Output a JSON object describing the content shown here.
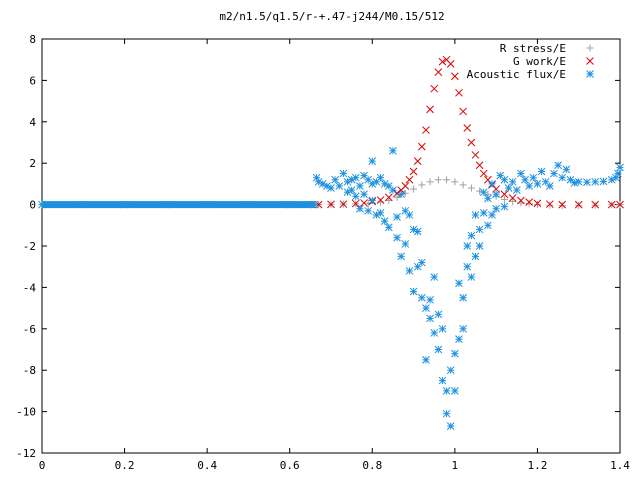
{
  "chart_data": {
    "type": "scatter",
    "title": "m2/n1.5/q1.5/r-+.47-j244/M0.15/512",
    "xlabel": "",
    "ylabel": "",
    "xlim": [
      0,
      1.4
    ],
    "ylim": [
      -12,
      8
    ],
    "xticks": [
      "0",
      "0.2",
      "0.4",
      "0.6",
      "0.8",
      "1",
      "1.2",
      "1.4"
    ],
    "xtick_values": [
      0,
      0.2,
      0.4,
      0.6,
      0.8,
      1.0,
      1.2,
      1.4
    ],
    "yticks": [
      "8",
      "6",
      "4",
      "2",
      "0",
      "-2",
      "-4",
      "-6",
      "-8",
      "-10",
      "-12"
    ],
    "ytick_values": [
      8,
      6,
      4,
      2,
      0,
      -2,
      -4,
      -6,
      -8,
      -10,
      -12
    ],
    "grid": false,
    "legend_position": "top-right",
    "series": [
      {
        "name": "R stress/E",
        "marker": "plus",
        "color": "#a0a0a0",
        "points": [
          [
            0.67,
            0.0
          ],
          [
            0.7,
            0.01
          ],
          [
            0.73,
            0.02
          ],
          [
            0.76,
            0.04
          ],
          [
            0.79,
            0.06
          ],
          [
            0.82,
            0.12
          ],
          [
            0.84,
            0.2
          ],
          [
            0.86,
            0.35
          ],
          [
            0.88,
            0.55
          ],
          [
            0.9,
            0.75
          ],
          [
            0.92,
            0.95
          ],
          [
            0.94,
            1.1
          ],
          [
            0.96,
            1.2
          ],
          [
            0.98,
            1.2
          ],
          [
            1.0,
            1.1
          ],
          [
            1.02,
            0.95
          ],
          [
            1.04,
            0.8
          ],
          [
            1.06,
            0.65
          ],
          [
            1.08,
            0.5
          ],
          [
            1.1,
            0.4
          ],
          [
            1.12,
            0.25
          ],
          [
            1.14,
            0.15
          ],
          [
            1.16,
            0.08
          ],
          [
            1.18,
            0.04
          ],
          [
            1.2,
            0.0
          ],
          [
            1.23,
            -0.03
          ],
          [
            1.26,
            -0.05
          ],
          [
            1.3,
            -0.05
          ],
          [
            1.34,
            -0.03
          ],
          [
            1.38,
            -0.01
          ],
          [
            1.4,
            0.0
          ]
        ]
      },
      {
        "name": "G work/E",
        "marker": "cross",
        "color": "#e00000",
        "points": [
          [
            0.67,
            0.0
          ],
          [
            0.7,
            0.01
          ],
          [
            0.73,
            0.02
          ],
          [
            0.76,
            0.05
          ],
          [
            0.78,
            0.08
          ],
          [
            0.8,
            0.15
          ],
          [
            0.82,
            0.22
          ],
          [
            0.84,
            0.35
          ],
          [
            0.86,
            0.55
          ],
          [
            0.87,
            0.7
          ],
          [
            0.88,
            0.9
          ],
          [
            0.89,
            1.2
          ],
          [
            0.9,
            1.6
          ],
          [
            0.91,
            2.1
          ],
          [
            0.92,
            2.8
          ],
          [
            0.93,
            3.6
          ],
          [
            0.94,
            4.6
          ],
          [
            0.95,
            5.6
          ],
          [
            0.96,
            6.4
          ],
          [
            0.97,
            6.9
          ],
          [
            0.98,
            7.0
          ],
          [
            0.99,
            6.8
          ],
          [
            1.0,
            6.2
          ],
          [
            1.01,
            5.4
          ],
          [
            1.02,
            4.5
          ],
          [
            1.03,
            3.7
          ],
          [
            1.04,
            3.0
          ],
          [
            1.05,
            2.4
          ],
          [
            1.06,
            1.9
          ],
          [
            1.07,
            1.5
          ],
          [
            1.08,
            1.2
          ],
          [
            1.09,
            0.95
          ],
          [
            1.1,
            0.75
          ],
          [
            1.12,
            0.5
          ],
          [
            1.14,
            0.32
          ],
          [
            1.16,
            0.2
          ],
          [
            1.18,
            0.12
          ],
          [
            1.2,
            0.06
          ],
          [
            1.23,
            0.02
          ],
          [
            1.26,
            0.0
          ],
          [
            1.3,
            0.0
          ],
          [
            1.34,
            0.0
          ],
          [
            1.38,
            0.0
          ],
          [
            1.4,
            0.0
          ]
        ]
      },
      {
        "name": "Acoustic flux/E",
        "marker": "star",
        "color": "#1e90e0",
        "points": [
          [
            0.0,
            0.0
          ],
          [
            0.1,
            0.0
          ],
          [
            0.2,
            0.0
          ],
          [
            0.3,
            0.0
          ],
          [
            0.4,
            0.0
          ],
          [
            0.5,
            0.0
          ],
          [
            0.6,
            0.0
          ],
          [
            0.66,
            0.0
          ],
          [
            0.665,
            1.3
          ],
          [
            0.67,
            1.1
          ],
          [
            0.68,
            1.0
          ],
          [
            0.69,
            0.9
          ],
          [
            0.7,
            0.8
          ],
          [
            0.71,
            1.2
          ],
          [
            0.72,
            0.9
          ],
          [
            0.73,
            1.5
          ],
          [
            0.74,
            1.1
          ],
          [
            0.74,
            0.6
          ],
          [
            0.75,
            1.2
          ],
          [
            0.75,
            0.7
          ],
          [
            0.76,
            1.3
          ],
          [
            0.76,
            0.4
          ],
          [
            0.77,
            0.9
          ],
          [
            0.77,
            -0.2
          ],
          [
            0.78,
            1.4
          ],
          [
            0.78,
            0.5
          ],
          [
            0.79,
            1.2
          ],
          [
            0.79,
            -0.3
          ],
          [
            0.8,
            1.0
          ],
          [
            0.8,
            2.1
          ],
          [
            0.8,
            0.2
          ],
          [
            0.81,
            1.1
          ],
          [
            0.81,
            -0.5
          ],
          [
            0.82,
            1.3
          ],
          [
            0.82,
            -0.4
          ],
          [
            0.83,
            1.0
          ],
          [
            0.83,
            -0.8
          ],
          [
            0.84,
            0.9
          ],
          [
            0.84,
            -1.1
          ],
          [
            0.85,
            2.6
          ],
          [
            0.85,
            0.7
          ],
          [
            0.86,
            -0.6
          ],
          [
            0.86,
            -1.6
          ],
          [
            0.87,
            0.5
          ],
          [
            0.87,
            -2.5
          ],
          [
            0.88,
            -0.3
          ],
          [
            0.88,
            -1.9
          ],
          [
            0.89,
            -3.2
          ],
          [
            0.89,
            -0.5
          ],
          [
            0.9,
            -1.2
          ],
          [
            0.9,
            -4.2
          ],
          [
            0.91,
            -1.3
          ],
          [
            0.91,
            -3.0
          ],
          [
            0.92,
            -2.8
          ],
          [
            0.92,
            -4.5
          ],
          [
            0.93,
            -5.0
          ],
          [
            0.93,
            -7.5
          ],
          [
            0.94,
            -4.6
          ],
          [
            0.94,
            -5.5
          ],
          [
            0.95,
            -6.2
          ],
          [
            0.95,
            -3.5
          ],
          [
            0.96,
            -5.3
          ],
          [
            0.96,
            -7.0
          ],
          [
            0.97,
            -6.0
          ],
          [
            0.97,
            -8.5
          ],
          [
            0.98,
            -9.0
          ],
          [
            0.98,
            -10.1
          ],
          [
            0.99,
            -10.7
          ],
          [
            0.99,
            -8.0
          ],
          [
            1.0,
            -9.0
          ],
          [
            1.0,
            -7.2
          ],
          [
            1.01,
            -6.5
          ],
          [
            1.01,
            -3.8
          ],
          [
            1.02,
            -4.5
          ],
          [
            1.02,
            -6.0
          ],
          [
            1.03,
            -3.0
          ],
          [
            1.03,
            -2.0
          ],
          [
            1.04,
            -3.5
          ],
          [
            1.04,
            -1.5
          ],
          [
            1.05,
            -2.5
          ],
          [
            1.05,
            -0.5
          ],
          [
            1.06,
            -1.2
          ],
          [
            1.06,
            -2.0
          ],
          [
            1.07,
            -0.4
          ],
          [
            1.07,
            0.6
          ],
          [
            1.08,
            -1.0
          ],
          [
            1.08,
            0.3
          ],
          [
            1.09,
            -0.5
          ],
          [
            1.09,
            1.0
          ],
          [
            1.1,
            0.5
          ],
          [
            1.1,
            -0.2
          ],
          [
            1.11,
            1.4
          ],
          [
            1.12,
            1.2
          ],
          [
            1.12,
            -0.1
          ],
          [
            1.13,
            0.8
          ],
          [
            1.14,
            1.1
          ],
          [
            1.15,
            0.7
          ],
          [
            1.16,
            1.5
          ],
          [
            1.17,
            1.2
          ],
          [
            1.18,
            0.9
          ],
          [
            1.19,
            1.3
          ],
          [
            1.2,
            1.0
          ],
          [
            1.21,
            1.6
          ],
          [
            1.22,
            1.1
          ],
          [
            1.23,
            0.9
          ],
          [
            1.24,
            1.5
          ],
          [
            1.25,
            1.9
          ],
          [
            1.26,
            1.3
          ],
          [
            1.27,
            1.7
          ],
          [
            1.28,
            1.2
          ],
          [
            1.29,
            1.05
          ],
          [
            1.3,
            1.1
          ],
          [
            1.32,
            1.08
          ],
          [
            1.34,
            1.1
          ],
          [
            1.36,
            1.12
          ],
          [
            1.38,
            1.2
          ],
          [
            1.39,
            1.3
          ],
          [
            1.395,
            1.5
          ],
          [
            1.4,
            1.8
          ]
        ]
      }
    ]
  }
}
